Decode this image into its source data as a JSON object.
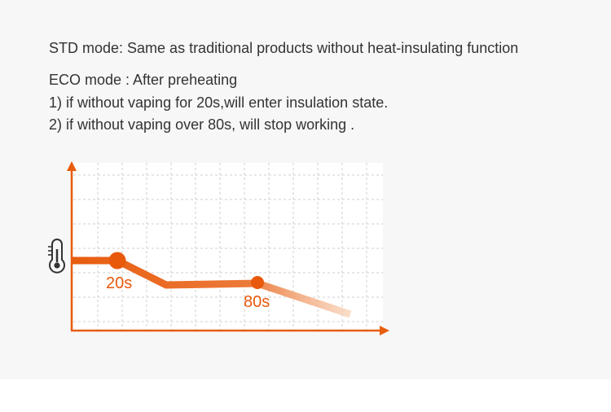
{
  "text": {
    "std": "STD mode: Same as traditional products without heat-insulating function",
    "eco": "ECO mode : After preheating",
    "item1": "1) if without vaping for 20s,will enter insulation state.",
    "item2": "2) if without vaping over 80s, will stop working ."
  },
  "diagram": {
    "markers": [
      {
        "label": "20s"
      },
      {
        "label": "80s"
      }
    ],
    "icon": "thermometer-icon",
    "colors": {
      "curve_start": "#e85d0e",
      "curve_end": "#f7c9a4",
      "marker": "#e8590c",
      "label": "#e8590c",
      "axis": "#e85d0e",
      "grid": "#cfcfcf",
      "icon": "#333333"
    }
  }
}
